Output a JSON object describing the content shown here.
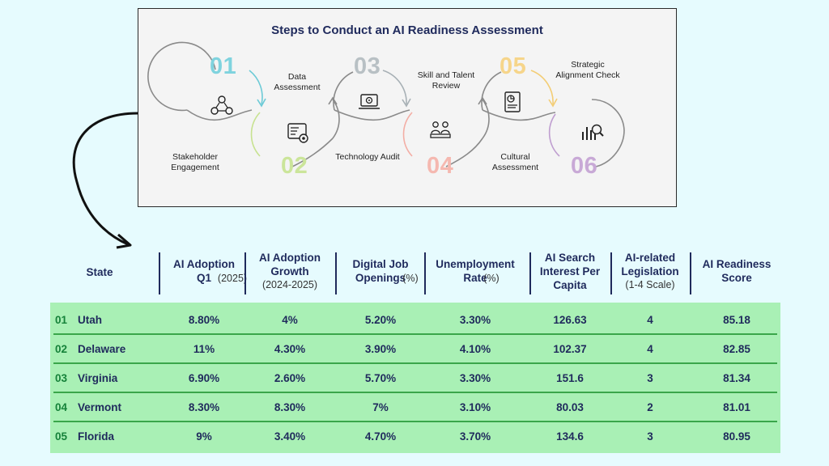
{
  "steps": {
    "title": "Steps to Conduct an AI Readiness Assessment",
    "items": [
      {
        "num": "01",
        "label": "Stakeholder Engagement",
        "color": "#7fd3de",
        "icon": "people-network-icon"
      },
      {
        "num": "02",
        "label": "Data Assessment",
        "color": "#cbe59a",
        "icon": "data-dashboard-icon"
      },
      {
        "num": "03",
        "label": "Technology Audit",
        "color": "#b8c0c4",
        "icon": "laptop-gear-icon"
      },
      {
        "num": "04",
        "label": "Skill and Talent Review",
        "color": "#f5b8b0",
        "icon": "team-meeting-icon"
      },
      {
        "num": "05",
        "label": "Cultural Assessment",
        "color": "#f6d58a",
        "icon": "report-chart-icon"
      },
      {
        "num": "06",
        "label": "Strategic Alignment Check",
        "color": "#c8a9d6",
        "icon": "analytics-magnifier-icon"
      }
    ]
  },
  "table": {
    "headers": [
      {
        "main": "State",
        "sub": ""
      },
      {
        "main": "AI Adoption Q1",
        "sub": "(2025)"
      },
      {
        "main": "AI Adoption Growth",
        "sub": "(2024-2025)"
      },
      {
        "main": "Digital Job Openings",
        "sub": "(%)"
      },
      {
        "main": "Unemployment Rate",
        "sub": "(%)"
      },
      {
        "main": "AI Search Interest Per Capita",
        "sub": ""
      },
      {
        "main": "AI-related Legislation",
        "sub": "(1-4 Scale)"
      },
      {
        "main": "AI Readiness Score",
        "sub": ""
      }
    ],
    "rows": [
      {
        "rank": "01",
        "state": "Utah",
        "adoption": "8.80%",
        "growth": "4%",
        "jobs": "5.20%",
        "unemp": "3.30%",
        "search": "126.63",
        "legis": "4",
        "score": "85.18"
      },
      {
        "rank": "02",
        "state": "Delaware",
        "adoption": "11%",
        "growth": "4.30%",
        "jobs": "3.90%",
        "unemp": "4.10%",
        "search": "102.37",
        "legis": "4",
        "score": "82.85"
      },
      {
        "rank": "03",
        "state": "Virginia",
        "adoption": "6.90%",
        "growth": "2.60%",
        "jobs": "5.70%",
        "unemp": "3.30%",
        "search": "151.6",
        "legis": "3",
        "score": "81.34"
      },
      {
        "rank": "04",
        "state": "Vermont",
        "adoption": "8.30%",
        "growth": "8.30%",
        "jobs": "7%",
        "unemp": "3.10%",
        "search": "80.03",
        "legis": "2",
        "score": "81.01"
      },
      {
        "rank": "05",
        "state": "Florida",
        "adoption": "9%",
        "growth": "3.40%",
        "jobs": "4.70%",
        "unemp": "3.70%",
        "search": "134.6",
        "legis": "3",
        "score": "80.95"
      }
    ]
  }
}
